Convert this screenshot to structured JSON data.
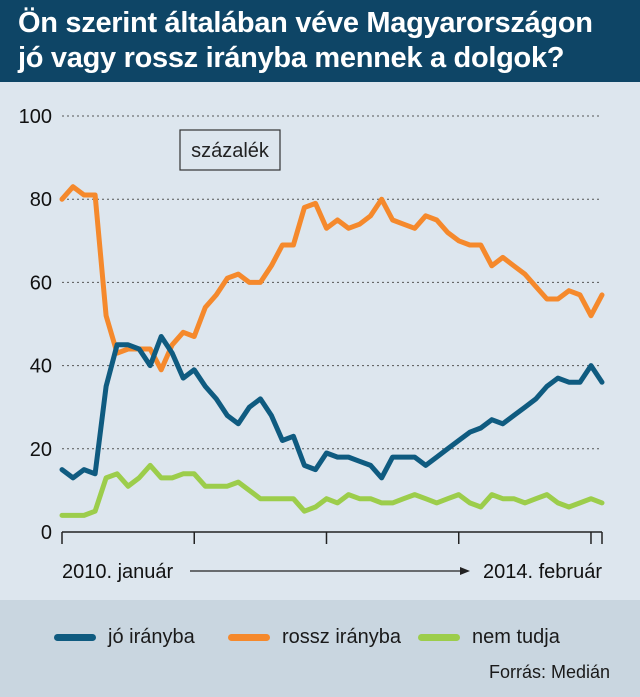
{
  "title": {
    "line1": "Ön szerint általában véve Magyarországon",
    "line2": "jó vagy rossz irányba mennek a dolgok?"
  },
  "unit_label": "százalék",
  "x_axis": {
    "start_label": "2010. január",
    "end_label": "2014. február"
  },
  "source": "Forrás: Medián",
  "colors": {
    "jo": "#0f5b80",
    "rossz": "#f5892c",
    "nem_tudja": "#9ccd4b",
    "title_bg": "#0e4566"
  },
  "chart_data": {
    "type": "line",
    "x_start": "2010-01",
    "x_end": "2014-02",
    "ylim": [
      0,
      100
    ],
    "yticks": [
      0,
      20,
      40,
      60,
      80,
      100
    ],
    "grid": true,
    "legend_position": "bottom",
    "series": [
      {
        "name": "jó irányba",
        "values": [
          15,
          13,
          15,
          14,
          35,
          45,
          45,
          44,
          40,
          47,
          43,
          37,
          39,
          35,
          32,
          28,
          26,
          30,
          32,
          28,
          22,
          23,
          16,
          15,
          19,
          18,
          18,
          17,
          16,
          13,
          18,
          18,
          18,
          16,
          18,
          20,
          22,
          24,
          25,
          27,
          26,
          28,
          30,
          32,
          35,
          37,
          36,
          36,
          40,
          36
        ]
      },
      {
        "name": "rossz irányba",
        "values": [
          80,
          83,
          81,
          81,
          52,
          43,
          44,
          44,
          44,
          39,
          45,
          48,
          47,
          54,
          57,
          61,
          62,
          60,
          60,
          64,
          69,
          69,
          78,
          79,
          73,
          75,
          73,
          74,
          76,
          80,
          75,
          74,
          73,
          76,
          75,
          72,
          70,
          69,
          69,
          64,
          66,
          64,
          62,
          59,
          56,
          56,
          58,
          57,
          52,
          57
        ]
      },
      {
        "name": "nem tudja",
        "values": [
          4,
          4,
          4,
          5,
          13,
          14,
          11,
          13,
          16,
          13,
          13,
          14,
          14,
          11,
          11,
          11,
          12,
          10,
          8,
          8,
          8,
          8,
          5,
          6,
          8,
          7,
          9,
          8,
          8,
          7,
          7,
          8,
          9,
          8,
          7,
          8,
          9,
          7,
          6,
          9,
          8,
          8,
          7,
          8,
          9,
          7,
          6,
          7,
          8,
          7
        ]
      }
    ]
  }
}
